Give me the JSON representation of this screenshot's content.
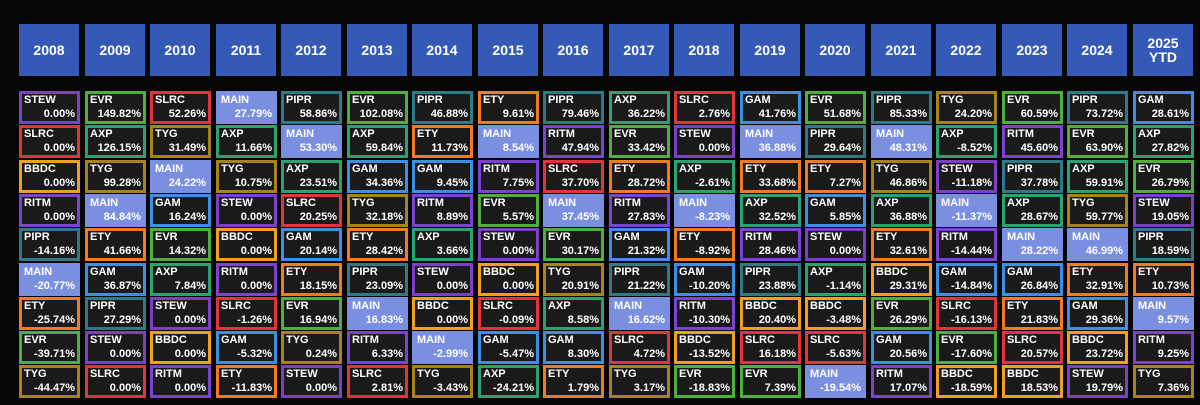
{
  "colors": {
    "header_bg": "#3559b7",
    "cell_bg": "#1a1a1a",
    "main_bg": "#7b8fe0",
    "page_bg": "#060606",
    "tickers": {
      "STEW": "#7d3fc6",
      "EVR": "#4faf3c",
      "SLRC": "#e0353a",
      "MAIN": "#7b8fe0",
      "PIPR": "#2f7a84",
      "IVR": "#8a2e8f",
      "ETY": "#f07b22",
      "AXP": "#2aa371",
      "GAM": "#3c8fe3",
      "RITM": "#7a44cf",
      "TYG": "#a8831a",
      "BBDC": "#f0a01e"
    }
  },
  "years": [
    {
      "label": "2008",
      "cells": [
        [
          "STEW",
          "0.00%"
        ],
        [
          "SLRC",
          "0.00%"
        ],
        [
          "BBDC",
          "0.00%"
        ],
        [
          "RITM",
          "0.00%"
        ],
        [
          "PIPR",
          "-14.16%"
        ],
        [
          "MAIN",
          "-20.77%"
        ],
        [
          "ETY",
          "-25.74%"
        ],
        [
          "EVR",
          "-39.71%"
        ],
        [
          "TYG",
          "-44.47%"
        ]
      ]
    },
    {
      "label": "2009",
      "cells": [
        [
          "EVR",
          "149.82%"
        ],
        [
          "AXP",
          "126.15%"
        ],
        [
          "TYG",
          "99.28%"
        ],
        [
          "MAIN",
          "84.84%"
        ],
        [
          "ETY",
          "41.66%"
        ],
        [
          "GAM",
          "36.87%"
        ],
        [
          "PIPR",
          "27.29%"
        ],
        [
          "STEW",
          "0.00%"
        ],
        [
          "SLRC",
          "0.00%"
        ]
      ]
    },
    {
      "label": "2010",
      "cells": [
        [
          "SLRC",
          "52.26%"
        ],
        [
          "TYG",
          "31.49%"
        ],
        [
          "MAIN",
          "24.22%"
        ],
        [
          "GAM",
          "16.24%"
        ],
        [
          "EVR",
          "14.32%"
        ],
        [
          "AXP",
          "7.84%"
        ],
        [
          "STEW",
          "0.00%"
        ],
        [
          "BBDC",
          "0.00%"
        ],
        [
          "RITM",
          "0.00%"
        ]
      ]
    },
    {
      "label": "2011",
      "cells": [
        [
          "MAIN",
          "27.79%"
        ],
        [
          "AXP",
          "11.66%"
        ],
        [
          "TYG",
          "10.75%"
        ],
        [
          "STEW",
          "0.00%"
        ],
        [
          "BBDC",
          "0.00%"
        ],
        [
          "RITM",
          "0.00%"
        ],
        [
          "SLRC",
          "-1.26%"
        ],
        [
          "GAM",
          "-5.32%"
        ],
        [
          "ETY",
          "-11.83%"
        ]
      ]
    },
    {
      "label": "2012",
      "cells": [
        [
          "PIPR",
          "58.86%"
        ],
        [
          "MAIN",
          "53.30%"
        ],
        [
          "AXP",
          "23.51%"
        ],
        [
          "SLRC",
          "20.25%"
        ],
        [
          "GAM",
          "20.14%"
        ],
        [
          "ETY",
          "18.15%"
        ],
        [
          "EVR",
          "16.94%"
        ],
        [
          "TYG",
          "0.24%"
        ],
        [
          "STEW",
          "0.00%"
        ]
      ]
    },
    {
      "label": "2013",
      "cells": [
        [
          "EVR",
          "102.08%"
        ],
        [
          "AXP",
          "59.84%"
        ],
        [
          "GAM",
          "34.36%"
        ],
        [
          "TYG",
          "32.18%"
        ],
        [
          "ETY",
          "28.42%"
        ],
        [
          "PIPR",
          "23.09%"
        ],
        [
          "MAIN",
          "16.83%"
        ],
        [
          "RITM",
          "6.33%"
        ],
        [
          "SLRC",
          "2.81%"
        ]
      ]
    },
    {
      "label": "2014",
      "cells": [
        [
          "PIPR",
          "46.88%"
        ],
        [
          "ETY",
          "11.73%"
        ],
        [
          "GAM",
          "9.45%"
        ],
        [
          "RITM",
          "8.89%"
        ],
        [
          "AXP",
          "3.66%"
        ],
        [
          "STEW",
          "0.00%"
        ],
        [
          "BBDC",
          "0.00%"
        ],
        [
          "MAIN",
          "-2.99%"
        ],
        [
          "TYG",
          "-3.43%"
        ]
      ]
    },
    {
      "label": "2015",
      "cells": [
        [
          "ETY",
          "9.61%"
        ],
        [
          "MAIN",
          "8.54%"
        ],
        [
          "RITM",
          "7.75%"
        ],
        [
          "EVR",
          "5.57%"
        ],
        [
          "STEW",
          "0.00%"
        ],
        [
          "BBDC",
          "0.00%"
        ],
        [
          "SLRC",
          "-0.09%"
        ],
        [
          "GAM",
          "-5.47%"
        ],
        [
          "AXP",
          "-24.21%"
        ]
      ]
    },
    {
      "label": "2016",
      "cells": [
        [
          "PIPR",
          "79.46%"
        ],
        [
          "RITM",
          "47.94%"
        ],
        [
          "SLRC",
          "37.70%"
        ],
        [
          "MAIN",
          "37.45%"
        ],
        [
          "EVR",
          "30.17%"
        ],
        [
          "TYG",
          "20.91%"
        ],
        [
          "AXP",
          "8.58%"
        ],
        [
          "GAM",
          "8.30%"
        ],
        [
          "ETY",
          "1.79%"
        ]
      ]
    },
    {
      "label": "2017",
      "cells": [
        [
          "AXP",
          "36.22%"
        ],
        [
          "EVR",
          "33.42%"
        ],
        [
          "ETY",
          "28.72%"
        ],
        [
          "RITM",
          "27.83%"
        ],
        [
          "GAM",
          "21.32%"
        ],
        [
          "PIPR",
          "21.22%"
        ],
        [
          "MAIN",
          "16.62%"
        ],
        [
          "SLRC",
          "4.72%"
        ],
        [
          "TYG",
          "3.17%"
        ]
      ]
    },
    {
      "label": "2018",
      "cells": [
        [
          "SLRC",
          "2.76%"
        ],
        [
          "STEW",
          "0.00%"
        ],
        [
          "AXP",
          "-2.61%"
        ],
        [
          "MAIN",
          "-8.23%"
        ],
        [
          "ETY",
          "-8.92%"
        ],
        [
          "GAM",
          "-10.20%"
        ],
        [
          "RITM",
          "-10.30%"
        ],
        [
          "BBDC",
          "-13.52%"
        ],
        [
          "EVR",
          "-18.83%"
        ]
      ]
    },
    {
      "label": "2019",
      "cells": [
        [
          "GAM",
          "41.76%"
        ],
        [
          "MAIN",
          "36.88%"
        ],
        [
          "ETY",
          "33.68%"
        ],
        [
          "AXP",
          "32.52%"
        ],
        [
          "RITM",
          "28.46%"
        ],
        [
          "PIPR",
          "23.88%"
        ],
        [
          "BBDC",
          "20.40%"
        ],
        [
          "SLRC",
          "16.18%"
        ],
        [
          "EVR",
          "7.39%"
        ]
      ]
    },
    {
      "label": "2020",
      "cells": [
        [
          "EVR",
          "51.68%"
        ],
        [
          "PIPR",
          "29.64%"
        ],
        [
          "ETY",
          "7.27%"
        ],
        [
          "GAM",
          "5.85%"
        ],
        [
          "STEW",
          "0.00%"
        ],
        [
          "AXP",
          "-1.14%"
        ],
        [
          "BBDC",
          "-3.48%"
        ],
        [
          "SLRC",
          "-5.63%"
        ],
        [
          "MAIN",
          "-19.54%"
        ]
      ]
    },
    {
      "label": "2021",
      "cells": [
        [
          "PIPR",
          "85.33%"
        ],
        [
          "MAIN",
          "48.31%"
        ],
        [
          "TYG",
          "46.86%"
        ],
        [
          "AXP",
          "36.88%"
        ],
        [
          "ETY",
          "32.61%"
        ],
        [
          "BBDC",
          "29.31%"
        ],
        [
          "EVR",
          "26.29%"
        ],
        [
          "GAM",
          "20.56%"
        ],
        [
          "RITM",
          "17.07%"
        ]
      ]
    },
    {
      "label": "2022",
      "cells": [
        [
          "TYG",
          "24.20%"
        ],
        [
          "AXP",
          "-8.52%"
        ],
        [
          "STEW",
          "-11.18%"
        ],
        [
          "MAIN",
          "-11.37%"
        ],
        [
          "RITM",
          "-14.44%"
        ],
        [
          "GAM",
          "-14.84%"
        ],
        [
          "SLRC",
          "-16.13%"
        ],
        [
          "EVR",
          "-17.60%"
        ],
        [
          "BBDC",
          "-18.59%"
        ]
      ]
    },
    {
      "label": "2023",
      "cells": [
        [
          "EVR",
          "60.59%"
        ],
        [
          "RITM",
          "45.60%"
        ],
        [
          "PIPR",
          "37.78%"
        ],
        [
          "AXP",
          "28.67%"
        ],
        [
          "MAIN",
          "28.22%"
        ],
        [
          "GAM",
          "26.84%"
        ],
        [
          "ETY",
          "21.83%"
        ],
        [
          "SLRC",
          "20.57%"
        ],
        [
          "BBDC",
          "18.53%"
        ]
      ]
    },
    {
      "label": "2024",
      "cells": [
        [
          "PIPR",
          "73.72%"
        ],
        [
          "EVR",
          "63.90%"
        ],
        [
          "AXP",
          "59.91%"
        ],
        [
          "TYG",
          "59.77%"
        ],
        [
          "MAIN",
          "46.99%"
        ],
        [
          "ETY",
          "32.91%"
        ],
        [
          "GAM",
          "29.36%"
        ],
        [
          "BBDC",
          "23.72%"
        ],
        [
          "STEW",
          "19.79%"
        ]
      ]
    },
    {
      "label": "2025 YTD",
      "cells": [
        [
          "GAM",
          "28.61%"
        ],
        [
          "AXP",
          "27.82%"
        ],
        [
          "EVR",
          "26.79%"
        ],
        [
          "STEW",
          "19.05%"
        ],
        [
          "PIPR",
          "18.59%"
        ],
        [
          "ETY",
          "10.73%"
        ],
        [
          "MAIN",
          "9.57%"
        ],
        [
          "RITM",
          "9.25%"
        ],
        [
          "TYG",
          "7.36%"
        ]
      ]
    }
  ]
}
